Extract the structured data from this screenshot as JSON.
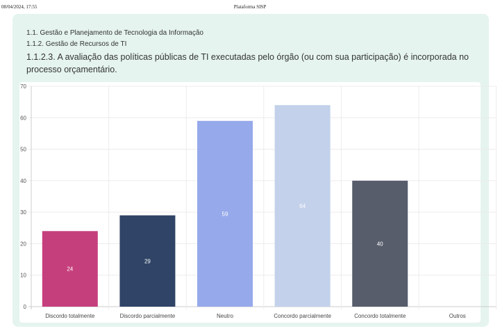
{
  "header": {
    "date": "08/04/2024, 17:55",
    "platform": "Plataforma SISP"
  },
  "breadcrumbs": [
    "1.1. Gestão e Planejamento de Tecnologia da Informação",
    "1.1.2. Gestão de Recursos de TI"
  ],
  "question": "1.1.2.3. A avaliação das políticas públicas de TI executadas pelo órgão (ou com sua participação) é incorporada no processo orçamentário.",
  "chart_data": {
    "type": "bar",
    "categories": [
      "Discordo totalmente",
      "Discordo parcialmente",
      "Neutro",
      "Concordo parcialmente",
      "Concordo totalmente",
      "Outros"
    ],
    "values": [
      24,
      29,
      59,
      64,
      40,
      0
    ],
    "colors": [
      "#c63f7d",
      "#2f4466",
      "#96a9ea",
      "#c3d1ea",
      "#575d6b",
      "#ffffff"
    ],
    "label_colors": [
      "#ffffff",
      "#ffffff",
      "#ffffff",
      "#ffffff",
      "#ffffff",
      "#ffffff"
    ],
    "ylim": [
      0,
      70
    ],
    "yticks": [
      0,
      10,
      20,
      30,
      40,
      50,
      60,
      70
    ],
    "grid": true,
    "title": "",
    "xlabel": "",
    "ylabel": ""
  }
}
